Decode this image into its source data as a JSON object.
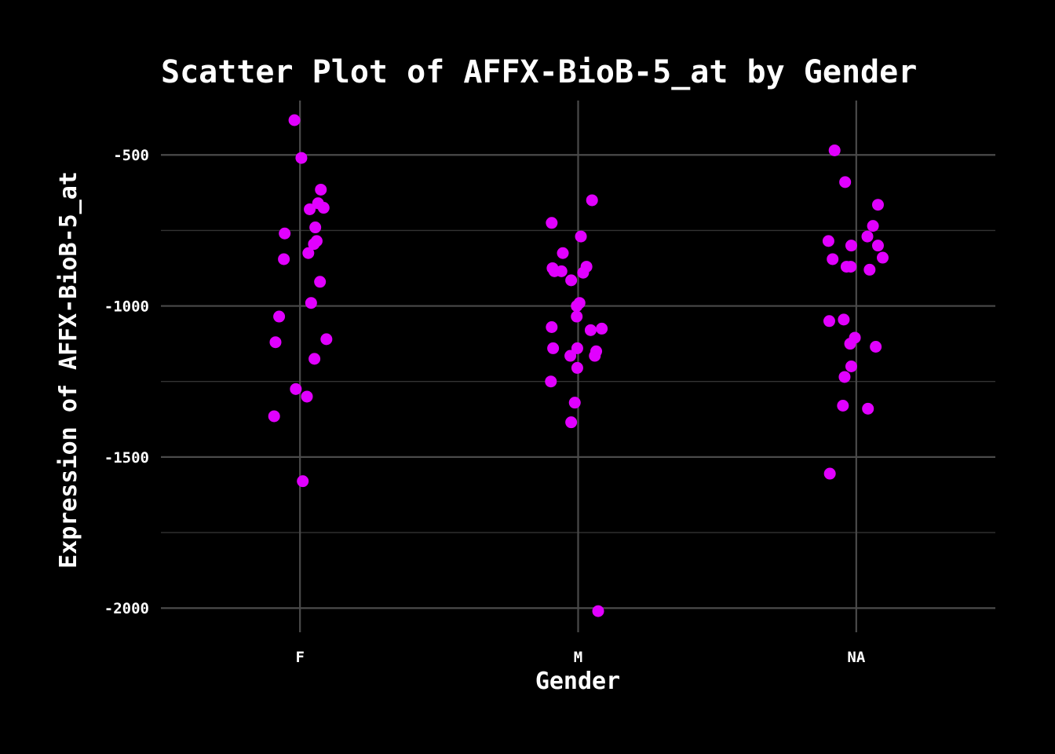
{
  "chart_data": {
    "type": "scatter",
    "title": "Scatter Plot of AFFX-BioB-5_at by Gender",
    "xlabel": "Gender",
    "ylabel": "Expression of AFFX-BioB-5_at",
    "categories": [
      "F",
      "M",
      "NA"
    ],
    "ylim": [
      -2080,
      -320
    ],
    "yticks": [
      -500,
      -1000,
      -1500,
      -2000
    ],
    "yticks_labels": [
      "-500",
      "-1000",
      "-1500",
      "-2000"
    ],
    "grid": true,
    "point_color": "#e100ff",
    "background": "#000000",
    "points": [
      {
        "category": "F",
        "jitter": -0.02,
        "y": -385
      },
      {
        "category": "F",
        "jitter": 0.005,
        "y": -510
      },
      {
        "category": "F",
        "jitter": 0.075,
        "y": -615
      },
      {
        "category": "F",
        "jitter": 0.065,
        "y": -660
      },
      {
        "category": "F",
        "jitter": 0.085,
        "y": -675
      },
      {
        "category": "F",
        "jitter": 0.035,
        "y": -680
      },
      {
        "category": "F",
        "jitter": 0.055,
        "y": -740
      },
      {
        "category": "F",
        "jitter": -0.055,
        "y": -760
      },
      {
        "category": "F",
        "jitter": 0.06,
        "y": -785
      },
      {
        "category": "F",
        "jitter": 0.05,
        "y": -795
      },
      {
        "category": "F",
        "jitter": 0.03,
        "y": -825
      },
      {
        "category": "F",
        "jitter": -0.058,
        "y": -845
      },
      {
        "category": "F",
        "jitter": 0.072,
        "y": -920
      },
      {
        "category": "F",
        "jitter": 0.04,
        "y": -990
      },
      {
        "category": "F",
        "jitter": -0.075,
        "y": -1035
      },
      {
        "category": "F",
        "jitter": -0.088,
        "y": -1120
      },
      {
        "category": "F",
        "jitter": 0.095,
        "y": -1110
      },
      {
        "category": "F",
        "jitter": 0.052,
        "y": -1175
      },
      {
        "category": "F",
        "jitter": -0.015,
        "y": -1275
      },
      {
        "category": "F",
        "jitter": 0.025,
        "y": -1300
      },
      {
        "category": "F",
        "jitter": -0.093,
        "y": -1365
      },
      {
        "category": "F",
        "jitter": 0.01,
        "y": -1580
      },
      {
        "category": "M",
        "jitter": 0.05,
        "y": -650
      },
      {
        "category": "M",
        "jitter": -0.095,
        "y": -725
      },
      {
        "category": "M",
        "jitter": 0.01,
        "y": -770
      },
      {
        "category": "M",
        "jitter": -0.055,
        "y": -825
      },
      {
        "category": "M",
        "jitter": 0.03,
        "y": -870
      },
      {
        "category": "M",
        "jitter": -0.092,
        "y": -875
      },
      {
        "category": "M",
        "jitter": -0.085,
        "y": -885
      },
      {
        "category": "M",
        "jitter": -0.06,
        "y": -885
      },
      {
        "category": "M",
        "jitter": 0.018,
        "y": -890
      },
      {
        "category": "M",
        "jitter": -0.025,
        "y": -915
      },
      {
        "category": "M",
        "jitter": 0.005,
        "y": -990
      },
      {
        "category": "M",
        "jitter": -0.005,
        "y": -1000
      },
      {
        "category": "M",
        "jitter": -0.005,
        "y": -1035
      },
      {
        "category": "M",
        "jitter": 0.045,
        "y": -1080
      },
      {
        "category": "M",
        "jitter": 0.085,
        "y": -1075
      },
      {
        "category": "M",
        "jitter": -0.095,
        "y": -1070
      },
      {
        "category": "M",
        "jitter": -0.09,
        "y": -1140
      },
      {
        "category": "M",
        "jitter": -0.003,
        "y": -1140
      },
      {
        "category": "M",
        "jitter": 0.065,
        "y": -1150
      },
      {
        "category": "M",
        "jitter": 0.06,
        "y": -1165
      },
      {
        "category": "M",
        "jitter": -0.028,
        "y": -1165
      },
      {
        "category": "M",
        "jitter": -0.003,
        "y": -1205
      },
      {
        "category": "M",
        "jitter": -0.098,
        "y": -1250
      },
      {
        "category": "M",
        "jitter": -0.012,
        "y": -1320
      },
      {
        "category": "M",
        "jitter": -0.025,
        "y": -1385
      },
      {
        "category": "M",
        "jitter": 0.072,
        "y": -2010
      },
      {
        "category": "NA",
        "jitter": -0.078,
        "y": -485
      },
      {
        "category": "NA",
        "jitter": -0.04,
        "y": -590
      },
      {
        "category": "NA",
        "jitter": 0.078,
        "y": -665
      },
      {
        "category": "NA",
        "jitter": 0.06,
        "y": -735
      },
      {
        "category": "NA",
        "jitter": 0.04,
        "y": -770
      },
      {
        "category": "NA",
        "jitter": -0.1,
        "y": -785
      },
      {
        "category": "NA",
        "jitter": -0.018,
        "y": -800
      },
      {
        "category": "NA",
        "jitter": 0.078,
        "y": -800
      },
      {
        "category": "NA",
        "jitter": -0.085,
        "y": -845
      },
      {
        "category": "NA",
        "jitter": 0.095,
        "y": -840
      },
      {
        "category": "NA",
        "jitter": -0.035,
        "y": -870
      },
      {
        "category": "NA",
        "jitter": -0.02,
        "y": -870
      },
      {
        "category": "NA",
        "jitter": 0.048,
        "y": -880
      },
      {
        "category": "NA",
        "jitter": -0.097,
        "y": -1050
      },
      {
        "category": "NA",
        "jitter": -0.045,
        "y": -1045
      },
      {
        "category": "NA",
        "jitter": -0.005,
        "y": -1105
      },
      {
        "category": "NA",
        "jitter": -0.022,
        "y": -1125
      },
      {
        "category": "NA",
        "jitter": 0.07,
        "y": -1135
      },
      {
        "category": "NA",
        "jitter": -0.018,
        "y": -1200
      },
      {
        "category": "NA",
        "jitter": -0.042,
        "y": -1235
      },
      {
        "category": "NA",
        "jitter": -0.048,
        "y": -1330
      },
      {
        "category": "NA",
        "jitter": 0.042,
        "y": -1340
      },
      {
        "category": "NA",
        "jitter": -0.095,
        "y": -1555
      }
    ]
  }
}
